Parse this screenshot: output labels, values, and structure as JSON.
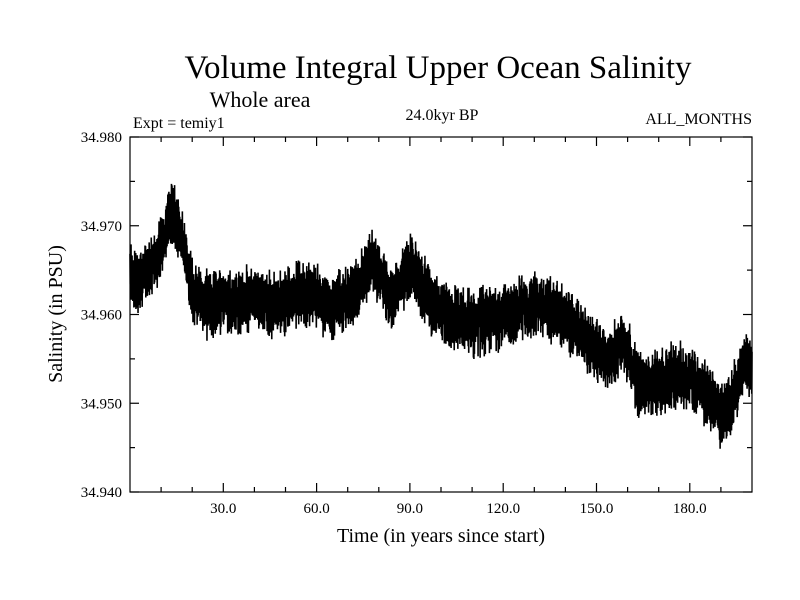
{
  "chart_data": {
    "type": "line",
    "title": "Volume Integral Upper Ocean Salinity",
    "subtitle": "Whole area",
    "experiment_label": "Expt = temiy1",
    "period_label": "24.0kyr BP",
    "months_label": "ALL_MONTHS",
    "xlabel": "Time (in years since start)",
    "ylabel": "Salinity (in PSU)",
    "xlim": [
      0,
      200
    ],
    "ylim": [
      34.94,
      34.98
    ],
    "x_ticks": [
      30,
      60,
      90,
      120,
      150,
      180
    ],
    "x_tick_labels": [
      "30.0",
      "60.0",
      "90.0",
      "120.0",
      "150.0",
      "180.0"
    ],
    "y_ticks": [
      34.94,
      34.95,
      34.96,
      34.97,
      34.98
    ],
    "y_tick_labels": [
      "34.940",
      "34.950",
      "34.960",
      "34.970",
      "34.980"
    ],
    "grid": false,
    "series": [
      {
        "name": "salinity",
        "color": "#000000",
        "envelope": {
          "x": [
            0,
            3,
            6,
            9,
            12,
            14,
            16,
            18,
            20,
            23,
            25,
            30,
            35,
            40,
            45,
            50,
            55,
            60,
            65,
            70,
            74,
            76,
            78,
            80,
            83,
            86,
            88,
            90,
            92,
            95,
            98,
            100,
            105,
            110,
            115,
            120,
            125,
            130,
            135,
            140,
            143,
            146,
            150,
            153,
            156,
            158,
            160,
            163,
            165,
            170,
            175,
            180,
            185,
            188,
            190,
            192,
            195,
            198,
            200
          ],
          "mean": [
            34.9648,
            34.9635,
            34.9652,
            34.9665,
            34.97,
            34.9715,
            34.9695,
            34.966,
            34.963,
            34.9615,
            34.961,
            34.9618,
            34.9612,
            34.962,
            34.961,
            34.9615,
            34.9625,
            34.962,
            34.961,
            34.9618,
            34.963,
            34.965,
            34.966,
            34.9645,
            34.962,
            34.9625,
            34.964,
            34.9655,
            34.9645,
            34.9625,
            34.9612,
            34.9605,
            34.9595,
            34.959,
            34.9595,
            34.9598,
            34.9605,
            34.9612,
            34.9605,
            34.9595,
            34.9585,
            34.9575,
            34.956,
            34.9548,
            34.9555,
            34.957,
            34.956,
            34.9525,
            34.9518,
            34.9525,
            34.953,
            34.953,
            34.951,
            34.95,
            34.9488,
            34.9495,
            34.9515,
            34.9545,
            34.954
          ],
          "amplitude": 0.0042
        }
      }
    ]
  }
}
